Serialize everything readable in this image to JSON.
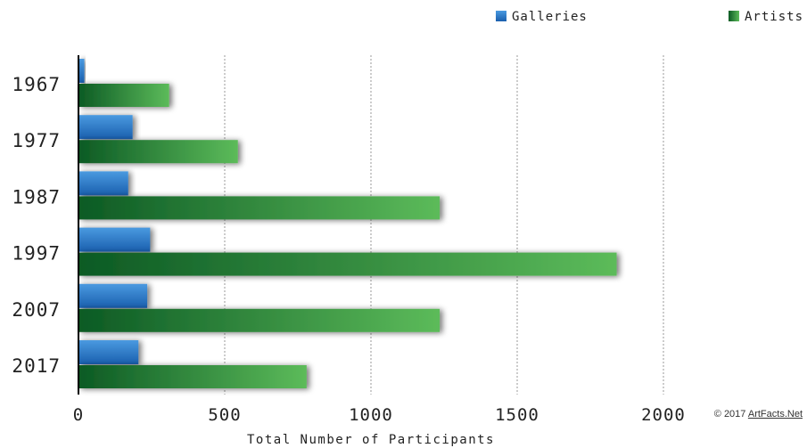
{
  "chart_data": {
    "type": "bar",
    "orientation": "horizontal",
    "categories": [
      "1967",
      "1977",
      "1987",
      "1997",
      "2007",
      "2017"
    ],
    "series": [
      {
        "name": "Galleries",
        "color": "#1f6fbf",
        "values": [
          20,
          185,
          170,
          245,
          235,
          205
        ]
      },
      {
        "name": "Artists",
        "color": "#2e8b3a",
        "values": [
          310,
          545,
          1235,
          1840,
          1235,
          780
        ]
      }
    ],
    "xlabel": "Total Number of Participants",
    "ylabel": "",
    "xlim": [
      0,
      2000
    ],
    "xticks": [
      0,
      500,
      1000,
      1500,
      2000
    ],
    "xtick_labels": [
      "0",
      "500",
      "1000",
      "1500",
      "2000"
    ],
    "grid": "vertical-dotted",
    "legend_position": "top-right"
  },
  "footer": {
    "copyright_prefix": "© 2017 ",
    "copyright_link": "ArtFacts.Net"
  }
}
